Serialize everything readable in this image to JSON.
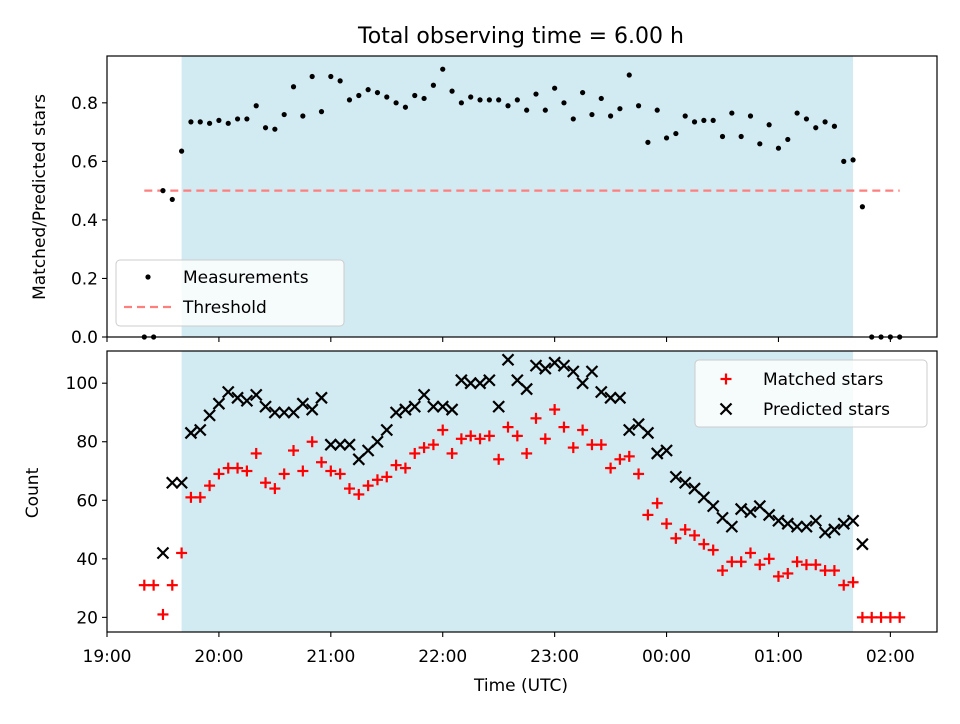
{
  "title": "Total observing time = 6.00 h",
  "colors": {
    "shade": "#add8e6",
    "measurement": "#000000",
    "threshold": "#ff7f7f",
    "matched": "#ff0000",
    "predicted": "#000000"
  },
  "chart_data": [
    {
      "type": "scatter",
      "panel": "top",
      "ylabel": "Matched/Predicted stars",
      "xlabel": "",
      "xlim": [
        "19:00",
        "02:25"
      ],
      "ylim": [
        0,
        0.96
      ],
      "yticks": [
        0.0,
        0.2,
        0.4,
        0.6,
        0.8
      ],
      "ytick_labels": [
        "0.0",
        "0.2",
        "0.4",
        "0.6",
        "0.8"
      ],
      "shaded_span": [
        "19:40",
        "01:40"
      ],
      "legend_position": "lower-left",
      "series": [
        {
          "name": "Measurements",
          "marker": "dot",
          "points": [
            [
              "19:20",
              0.0
            ],
            [
              "19:25",
              0.0
            ],
            [
              "19:30",
              0.5
            ],
            [
              "19:35",
              0.47
            ],
            [
              "19:40",
              0.635
            ],
            [
              "19:45",
              0.735
            ],
            [
              "19:50",
              0.735
            ],
            [
              "19:55",
              0.73
            ],
            [
              "20:00",
              0.74
            ],
            [
              "20:05",
              0.73
            ],
            [
              "20:10",
              0.745
            ],
            [
              "20:15",
              0.745
            ],
            [
              "20:20",
              0.79
            ],
            [
              "20:25",
              0.715
            ],
            [
              "20:30",
              0.71
            ],
            [
              "20:35",
              0.76
            ],
            [
              "20:40",
              0.855
            ],
            [
              "20:45",
              0.755
            ],
            [
              "20:50",
              0.89
            ],
            [
              "20:55",
              0.77
            ],
            [
              "21:00",
              0.89
            ],
            [
              "21:05",
              0.875
            ],
            [
              "21:10",
              0.81
            ],
            [
              "21:15",
              0.825
            ],
            [
              "21:20",
              0.845
            ],
            [
              "21:25",
              0.835
            ],
            [
              "21:30",
              0.82
            ],
            [
              "21:35",
              0.8
            ],
            [
              "21:40",
              0.785
            ],
            [
              "21:45",
              0.825
            ],
            [
              "21:50",
              0.815
            ],
            [
              "21:55",
              0.86
            ],
            [
              "22:00",
              0.915
            ],
            [
              "22:05",
              0.84
            ],
            [
              "22:10",
              0.8
            ],
            [
              "22:15",
              0.82
            ],
            [
              "22:20",
              0.81
            ],
            [
              "22:25",
              0.81
            ],
            [
              "22:30",
              0.81
            ],
            [
              "22:35",
              0.79
            ],
            [
              "22:40",
              0.81
            ],
            [
              "22:45",
              0.775
            ],
            [
              "22:50",
              0.83
            ],
            [
              "22:55",
              0.775
            ],
            [
              "23:00",
              0.85
            ],
            [
              "23:05",
              0.8
            ],
            [
              "23:10",
              0.745
            ],
            [
              "23:15",
              0.835
            ],
            [
              "23:20",
              0.76
            ],
            [
              "23:25",
              0.815
            ],
            [
              "23:30",
              0.755
            ],
            [
              "23:35",
              0.78
            ],
            [
              "23:40",
              0.895
            ],
            [
              "23:45",
              0.79
            ],
            [
              "23:50",
              0.665
            ],
            [
              "23:55",
              0.775
            ],
            [
              "00:00",
              0.68
            ],
            [
              "00:05",
              0.695
            ],
            [
              "00:10",
              0.755
            ],
            [
              "00:15",
              0.735
            ],
            [
              "00:20",
              0.74
            ],
            [
              "00:25",
              0.74
            ],
            [
              "00:30",
              0.685
            ],
            [
              "00:35",
              0.765
            ],
            [
              "00:40",
              0.685
            ],
            [
              "00:45",
              0.755
            ],
            [
              "00:50",
              0.66
            ],
            [
              "00:55",
              0.725
            ],
            [
              "01:00",
              0.645
            ],
            [
              "01:05",
              0.675
            ],
            [
              "01:10",
              0.765
            ],
            [
              "01:15",
              0.745
            ],
            [
              "01:20",
              0.715
            ],
            [
              "01:25",
              0.735
            ],
            [
              "01:30",
              0.72
            ],
            [
              "01:35",
              0.6
            ],
            [
              "01:40",
              0.605
            ],
            [
              "01:45",
              0.445
            ],
            [
              "01:50",
              0.0
            ],
            [
              "01:55",
              0.0
            ],
            [
              "02:00",
              0.0
            ],
            [
              "02:05",
              0.0
            ]
          ]
        },
        {
          "name": "Threshold",
          "marker": "dashed-line",
          "points": [
            [
              "19:20",
              0.5
            ],
            [
              "02:05",
              0.5
            ]
          ]
        }
      ]
    },
    {
      "type": "scatter",
      "panel": "bottom",
      "xlabel": "Time (UTC)",
      "ylabel": "Count",
      "xlim": [
        "19:00",
        "02:25"
      ],
      "ylim": [
        15,
        111
      ],
      "xticks": [
        "19:00",
        "20:00",
        "21:00",
        "22:00",
        "23:00",
        "00:00",
        "01:00",
        "02:00"
      ],
      "yticks": [
        20,
        40,
        60,
        80,
        100
      ],
      "shaded_span": [
        "19:40",
        "01:40"
      ],
      "legend_position": "upper-right",
      "series": [
        {
          "name": "Matched stars",
          "marker": "plus",
          "points": [
            [
              "19:20",
              31
            ],
            [
              "19:25",
              31
            ],
            [
              "19:30",
              21
            ],
            [
              "19:35",
              31
            ],
            [
              "19:40",
              42
            ],
            [
              "19:45",
              61
            ],
            [
              "19:50",
              61
            ],
            [
              "19:55",
              65
            ],
            [
              "20:00",
              69
            ],
            [
              "20:05",
              71
            ],
            [
              "20:10",
              71
            ],
            [
              "20:15",
              70
            ],
            [
              "20:20",
              76
            ],
            [
              "20:25",
              66
            ],
            [
              "20:30",
              64
            ],
            [
              "20:35",
              69
            ],
            [
              "20:40",
              77
            ],
            [
              "20:45",
              70
            ],
            [
              "20:50",
              80
            ],
            [
              "20:55",
              73
            ],
            [
              "21:00",
              70
            ],
            [
              "21:05",
              69
            ],
            [
              "21:10",
              64
            ],
            [
              "21:15",
              62
            ],
            [
              "21:20",
              65
            ],
            [
              "21:25",
              67
            ],
            [
              "21:30",
              68
            ],
            [
              "21:35",
              72
            ],
            [
              "21:40",
              71
            ],
            [
              "21:45",
              76
            ],
            [
              "21:50",
              78
            ],
            [
              "21:55",
              79
            ],
            [
              "22:00",
              84
            ],
            [
              "22:05",
              76
            ],
            [
              "22:10",
              81
            ],
            [
              "22:15",
              82
            ],
            [
              "22:20",
              81
            ],
            [
              "22:25",
              82
            ],
            [
              "22:30",
              74
            ],
            [
              "22:35",
              85
            ],
            [
              "22:40",
              82
            ],
            [
              "22:45",
              76
            ],
            [
              "22:50",
              88
            ],
            [
              "22:55",
              81
            ],
            [
              "23:00",
              91
            ],
            [
              "23:05",
              85
            ],
            [
              "23:10",
              78
            ],
            [
              "23:15",
              84
            ],
            [
              "23:20",
              79
            ],
            [
              "23:25",
              79
            ],
            [
              "23:30",
              71
            ],
            [
              "23:35",
              74
            ],
            [
              "23:40",
              75
            ],
            [
              "23:45",
              69
            ],
            [
              "23:50",
              55
            ],
            [
              "23:55",
              59
            ],
            [
              "00:00",
              52
            ],
            [
              "00:05",
              47
            ],
            [
              "00:10",
              50
            ],
            [
              "00:15",
              48
            ],
            [
              "00:20",
              45
            ],
            [
              "00:25",
              43
            ],
            [
              "00:30",
              36
            ],
            [
              "00:35",
              39
            ],
            [
              "00:40",
              39
            ],
            [
              "00:45",
              42
            ],
            [
              "00:50",
              38
            ],
            [
              "00:55",
              40
            ],
            [
              "01:00",
              34
            ],
            [
              "01:05",
              35
            ],
            [
              "01:10",
              39
            ],
            [
              "01:15",
              38
            ],
            [
              "01:20",
              38
            ],
            [
              "01:25",
              36
            ],
            [
              "01:30",
              36
            ],
            [
              "01:35",
              31
            ],
            [
              "01:40",
              32
            ],
            [
              "01:45",
              20
            ],
            [
              "01:50",
              20
            ],
            [
              "01:55",
              20
            ],
            [
              "02:00",
              20
            ],
            [
              "02:05",
              20
            ]
          ]
        },
        {
          "name": "Predicted stars",
          "marker": "x",
          "points": [
            [
              "19:30",
              42
            ],
            [
              "19:35",
              66
            ],
            [
              "19:40",
              66
            ],
            [
              "19:45",
              83
            ],
            [
              "19:50",
              84
            ],
            [
              "19:55",
              89
            ],
            [
              "20:00",
              93
            ],
            [
              "20:05",
              97
            ],
            [
              "20:10",
              95
            ],
            [
              "20:15",
              94
            ],
            [
              "20:20",
              96
            ],
            [
              "20:25",
              92
            ],
            [
              "20:30",
              90
            ],
            [
              "20:35",
              90
            ],
            [
              "20:40",
              90
            ],
            [
              "20:45",
              93
            ],
            [
              "20:50",
              91
            ],
            [
              "20:55",
              95
            ],
            [
              "21:00",
              79
            ],
            [
              "21:05",
              79
            ],
            [
              "21:10",
              79
            ],
            [
              "21:15",
              74
            ],
            [
              "21:20",
              77
            ],
            [
              "21:25",
              80
            ],
            [
              "21:30",
              84
            ],
            [
              "21:35",
              90
            ],
            [
              "21:40",
              91
            ],
            [
              "21:45",
              92
            ],
            [
              "21:50",
              96
            ],
            [
              "21:55",
              92
            ],
            [
              "22:00",
              92
            ],
            [
              "22:05",
              91
            ],
            [
              "22:10",
              101
            ],
            [
              "22:15",
              100
            ],
            [
              "22:20",
              100
            ],
            [
              "22:25",
              101
            ],
            [
              "22:30",
              92
            ],
            [
              "22:35",
              108
            ],
            [
              "22:40",
              101
            ],
            [
              "22:45",
              98
            ],
            [
              "22:50",
              106
            ],
            [
              "22:55",
              105
            ],
            [
              "23:00",
              107
            ],
            [
              "23:05",
              106
            ],
            [
              "23:10",
              104
            ],
            [
              "23:15",
              100
            ],
            [
              "23:20",
              104
            ],
            [
              "23:25",
              97
            ],
            [
              "23:30",
              95
            ],
            [
              "23:35",
              95
            ],
            [
              "23:40",
              84
            ],
            [
              "23:45",
              86
            ],
            [
              "23:50",
              83
            ],
            [
              "23:55",
              76
            ],
            [
              "00:00",
              77
            ],
            [
              "00:05",
              68
            ],
            [
              "00:10",
              66
            ],
            [
              "00:15",
              64
            ],
            [
              "00:20",
              61
            ],
            [
              "00:25",
              58
            ],
            [
              "00:30",
              54
            ],
            [
              "00:35",
              51
            ],
            [
              "00:40",
              57
            ],
            [
              "00:45",
              56
            ],
            [
              "00:50",
              58
            ],
            [
              "00:55",
              55
            ],
            [
              "01:00",
              53
            ],
            [
              "01:05",
              52
            ],
            [
              "01:10",
              51
            ],
            [
              "01:15",
              51
            ],
            [
              "01:20",
              53
            ],
            [
              "01:25",
              49
            ],
            [
              "01:30",
              50
            ],
            [
              "01:35",
              52
            ],
            [
              "01:40",
              53
            ],
            [
              "01:45",
              45
            ]
          ]
        }
      ]
    }
  ]
}
